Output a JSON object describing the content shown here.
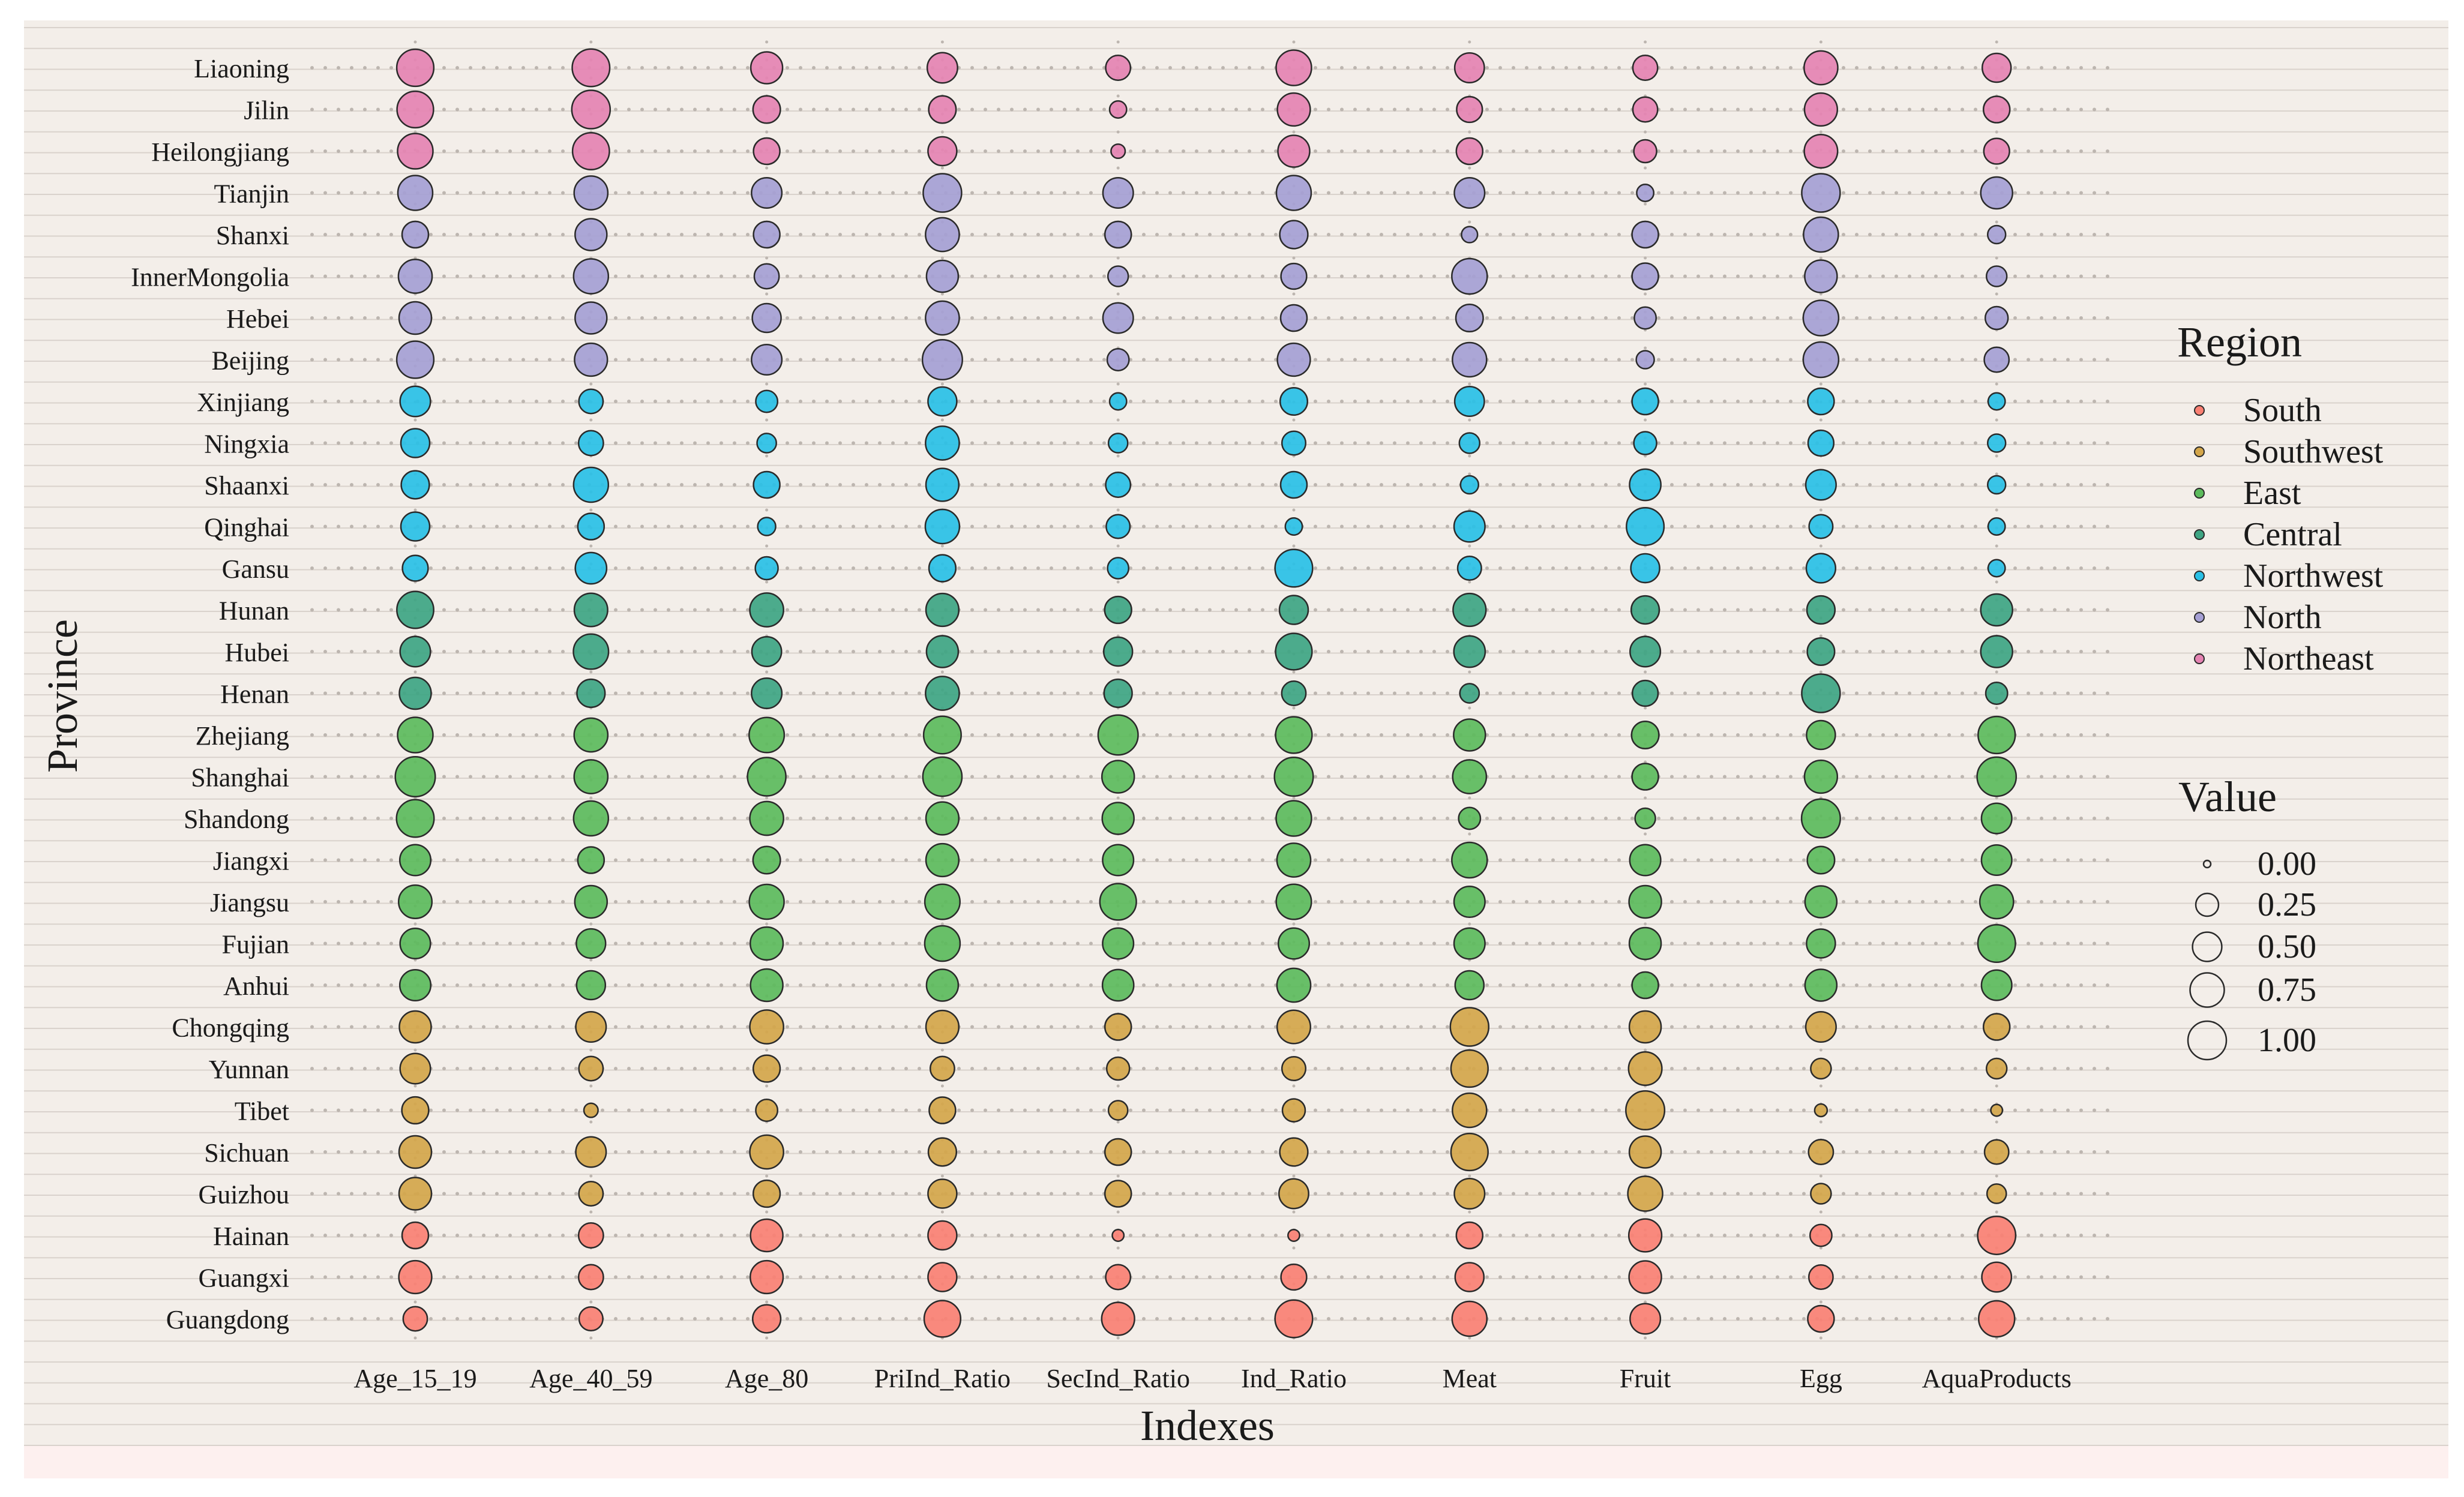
{
  "chart_data": {
    "type": "scatter",
    "subtype": "bubble-grid",
    "xlabel": "Indexes",
    "ylabel": "Province",
    "indexes": [
      "Age_15_19",
      "Age_40_59",
      "Age_80",
      "PriInd_Ratio",
      "SecInd_Ratio",
      "Ind_Ratio",
      "Meat",
      "Fruit",
      "Egg",
      "AquaProducts"
    ],
    "provinces": [
      "Liaoning",
      "Jilin",
      "Heilongjiang",
      "Tianjin",
      "Shanxi",
      "InnerMongolia",
      "Hebei",
      "Beijing",
      "Xinjiang",
      "Ningxia",
      "Shaanxi",
      "Qinghai",
      "Gansu",
      "Hunan",
      "Hubei",
      "Henan",
      "Zhejiang",
      "Shanghai",
      "Shandong",
      "Jiangxi",
      "Jiangsu",
      "Fujian",
      "Anhui",
      "Chongqing",
      "Yunnan",
      "Tibet",
      "Sichuan",
      "Guizhou",
      "Hainan",
      "Guangxi",
      "Guangdong"
    ],
    "province_region": {
      "Liaoning": "Northeast",
      "Jilin": "Northeast",
      "Heilongjiang": "Northeast",
      "Tianjin": "North",
      "Shanxi": "North",
      "InnerMongolia": "North",
      "Hebei": "North",
      "Beijing": "North",
      "Xinjiang": "Northwest",
      "Ningxia": "Northwest",
      "Shaanxi": "Northwest",
      "Qinghai": "Northwest",
      "Gansu": "Northwest",
      "Hunan": "Central",
      "Hubei": "Central",
      "Henan": "Central",
      "Zhejiang": "East",
      "Shanghai": "East",
      "Shandong": "East",
      "Jiangxi": "East",
      "Jiangsu": "East",
      "Fujian": "East",
      "Anhui": "East",
      "Chongqing": "Southwest",
      "Yunnan": "Southwest",
      "Tibet": "Southwest",
      "Sichuan": "Southwest",
      "Guizhou": "Southwest",
      "Hainan": "South",
      "Guangxi": "South",
      "Guangdong": "South"
    },
    "values": {
      "Liaoning": [
        0.92,
        0.95,
        0.62,
        0.55,
        0.32,
        0.82,
        0.52,
        0.32,
        0.72,
        0.48
      ],
      "Jilin": [
        0.88,
        1.0,
        0.42,
        0.42,
        0.1,
        0.68,
        0.35,
        0.32,
        0.68,
        0.38
      ],
      "Heilongjiang": [
        0.82,
        0.9,
        0.38,
        0.48,
        0.05,
        0.62,
        0.38,
        0.25,
        0.7,
        0.35
      ],
      "Tianjin": [
        0.78,
        0.72,
        0.55,
        1.0,
        0.55,
        0.78,
        0.55,
        0.1,
        1.0,
        0.62
      ],
      "Shanxi": [
        0.38,
        0.62,
        0.38,
        0.72,
        0.38,
        0.45,
        0.08,
        0.38,
        0.78,
        0.12
      ],
      "InnerMongolia": [
        0.72,
        0.78,
        0.32,
        0.62,
        0.18,
        0.35,
        0.82,
        0.38,
        0.65,
        0.18
      ],
      "Hebei": [
        0.65,
        0.62,
        0.48,
        0.72,
        0.55,
        0.38,
        0.42,
        0.22,
        0.82,
        0.25
      ],
      "Beijing": [
        0.92,
        0.68,
        0.55,
        1.1,
        0.22,
        0.68,
        0.75,
        0.12,
        0.82,
        0.32
      ],
      "Xinjiang": [
        0.55,
        0.3,
        0.22,
        0.48,
        0.1,
        0.42,
        0.52,
        0.38,
        0.38,
        0.1
      ],
      "Ningxia": [
        0.48,
        0.32,
        0.15,
        0.72,
        0.15,
        0.28,
        0.18,
        0.25,
        0.35,
        0.12
      ],
      "Shaanxi": [
        0.45,
        0.78,
        0.38,
        0.68,
        0.32,
        0.38,
        0.12,
        0.6,
        0.55,
        0.12
      ],
      "Qinghai": [
        0.48,
        0.38,
        0.12,
        0.75,
        0.28,
        0.1,
        0.58,
        0.95,
        0.28,
        0.1
      ],
      "Gansu": [
        0.35,
        0.6,
        0.25,
        0.4,
        0.2,
        0.95,
        0.28,
        0.48,
        0.5,
        0.1
      ],
      "Hunan": [
        0.9,
        0.7,
        0.72,
        0.68,
        0.4,
        0.48,
        0.68,
        0.45,
        0.45,
        0.62
      ],
      "Hubei": [
        0.55,
        0.8,
        0.52,
        0.62,
        0.48,
        0.88,
        0.6,
        0.55,
        0.42,
        0.62
      ],
      "Henan": [
        0.62,
        0.45,
        0.55,
        0.72,
        0.45,
        0.3,
        0.15,
        0.35,
        1.0,
        0.22
      ],
      "Zhejiang": [
        0.82,
        0.72,
        0.8,
        0.95,
        1.1,
        0.88,
        0.62,
        0.42,
        0.48,
        0.92
      ],
      "Shanghai": [
        1.1,
        0.72,
        1.0,
        1.05,
        0.65,
        1.02,
        0.72,
        0.38,
        0.68,
        1.05
      ],
      "Shandong": [
        0.95,
        0.78,
        0.72,
        0.68,
        0.62,
        0.82,
        0.22,
        0.18,
        1.02,
        0.55
      ],
      "Jiangxi": [
        0.58,
        0.38,
        0.42,
        0.68,
        0.58,
        0.72,
        0.82,
        0.58,
        0.42,
        0.55
      ],
      "Jiangsu": [
        0.7,
        0.65,
        0.78,
        0.8,
        0.88,
        0.8,
        0.58,
        0.65,
        0.62,
        0.72
      ],
      "Fujian": [
        0.55,
        0.5,
        0.68,
        0.82,
        0.58,
        0.58,
        0.58,
        0.62,
        0.48,
        0.95
      ],
      "Anhui": [
        0.58,
        0.48,
        0.65,
        0.62,
        0.6,
        0.72,
        0.48,
        0.38,
        0.62,
        0.55
      ],
      "Chongqing": [
        0.62,
        0.55,
        0.72,
        0.68,
        0.38,
        0.7,
        1.0,
        0.62,
        0.55,
        0.38
      ],
      "Yunnan": [
        0.55,
        0.3,
        0.4,
        0.3,
        0.25,
        0.28,
        0.92,
        0.7,
        0.18,
        0.18
      ],
      "Tibet": [
        0.4,
        0.05,
        0.22,
        0.38,
        0.15,
        0.25,
        0.75,
        1.02,
        0.03,
        0.02
      ],
      "Sichuan": [
        0.65,
        0.55,
        0.72,
        0.45,
        0.38,
        0.45,
        0.92,
        0.62,
        0.32,
        0.3
      ],
      "Guizhou": [
        0.65,
        0.3,
        0.4,
        0.48,
        0.38,
        0.52,
        0.55,
        0.78,
        0.18,
        0.15
      ],
      "Hainan": [
        0.38,
        0.32,
        0.65,
        0.48,
        0.02,
        0.02,
        0.38,
        0.68,
        0.22,
        0.98
      ],
      "Guangxi": [
        0.68,
        0.32,
        0.68,
        0.48,
        0.32,
        0.35,
        0.48,
        0.65,
        0.3,
        0.52
      ],
      "Guangdong": [
        0.3,
        0.28,
        0.45,
        0.88,
        0.68,
        0.95,
        0.78,
        0.55,
        0.38,
        0.85
      ]
    },
    "legend": {
      "region_title": "Region",
      "regions": [
        "South",
        "Southwest",
        "East",
        "Central",
        "Northwest",
        "North",
        "Northeast"
      ],
      "region_colors": {
        "South": "#fa8073",
        "Southwest": "#d4a64a",
        "East": "#5cbb5c",
        "Central": "#3ea583",
        "Northwest": "#29c0e6",
        "North": "#a59fd4",
        "Northeast": "#e583b2"
      },
      "size_title": "Value",
      "size_values": [
        0.0,
        0.25,
        0.5,
        0.75,
        1.0
      ],
      "size_labels": [
        "0.00",
        "0.25",
        "0.50",
        "0.75",
        "1.00"
      ]
    },
    "colors": {
      "plot_background": "#f3eee9",
      "figure_background": "#ffffff",
      "bottom_band": "#fdf0ef",
      "grid_line": "#d9d2cc",
      "guide_dots": "#bdb6b0",
      "bubble_stroke": "#2a2a2a"
    }
  }
}
